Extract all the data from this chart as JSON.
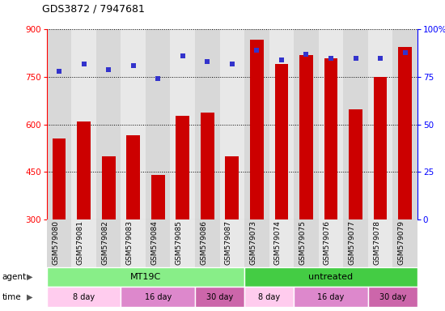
{
  "title": "GDS3872 / 7947681",
  "samples": [
    "GSM579080",
    "GSM579081",
    "GSM579082",
    "GSM579083",
    "GSM579084",
    "GSM579085",
    "GSM579086",
    "GSM579087",
    "GSM579073",
    "GSM579074",
    "GSM579075",
    "GSM579076",
    "GSM579077",
    "GSM579078",
    "GSM579079"
  ],
  "counts": [
    555,
    608,
    500,
    565,
    440,
    628,
    638,
    500,
    868,
    790,
    820,
    810,
    648,
    750,
    845
  ],
  "percentiles": [
    78,
    82,
    79,
    81,
    74,
    86,
    83,
    82,
    89,
    84,
    87,
    85,
    85,
    85,
    88
  ],
  "bar_color": "#cc0000",
  "dot_color": "#3333cc",
  "ylim_left": [
    300,
    900
  ],
  "ylim_right": [
    0,
    100
  ],
  "yticks_left": [
    300,
    450,
    600,
    750,
    900
  ],
  "yticks_right": [
    0,
    25,
    50,
    75,
    100
  ],
  "agent_groups": [
    {
      "label": "MT19C",
      "start": 0,
      "end": 8,
      "color": "#88ee88"
    },
    {
      "label": "untreated",
      "start": 8,
      "end": 15,
      "color": "#44cc44"
    }
  ],
  "time_groups": [
    {
      "label": "8 day",
      "start": 0,
      "end": 3,
      "color": "#ffbbee"
    },
    {
      "label": "16 day",
      "start": 3,
      "end": 6,
      "color": "#dd88cc"
    },
    {
      "label": "30 day",
      "start": 6,
      "end": 8,
      "color": "#dd66bb"
    },
    {
      "label": "8 day",
      "start": 8,
      "end": 10,
      "color": "#ffbbee"
    },
    {
      "label": "16 day",
      "start": 10,
      "end": 13,
      "color": "#dd88cc"
    },
    {
      "label": "30 day",
      "start": 13,
      "end": 15,
      "color": "#dd66bb"
    }
  ],
  "legend_count_color": "#cc0000",
  "legend_percentile_color": "#3333cc",
  "background_color": "#ffffff",
  "plot_bg_color": "#ffffff"
}
